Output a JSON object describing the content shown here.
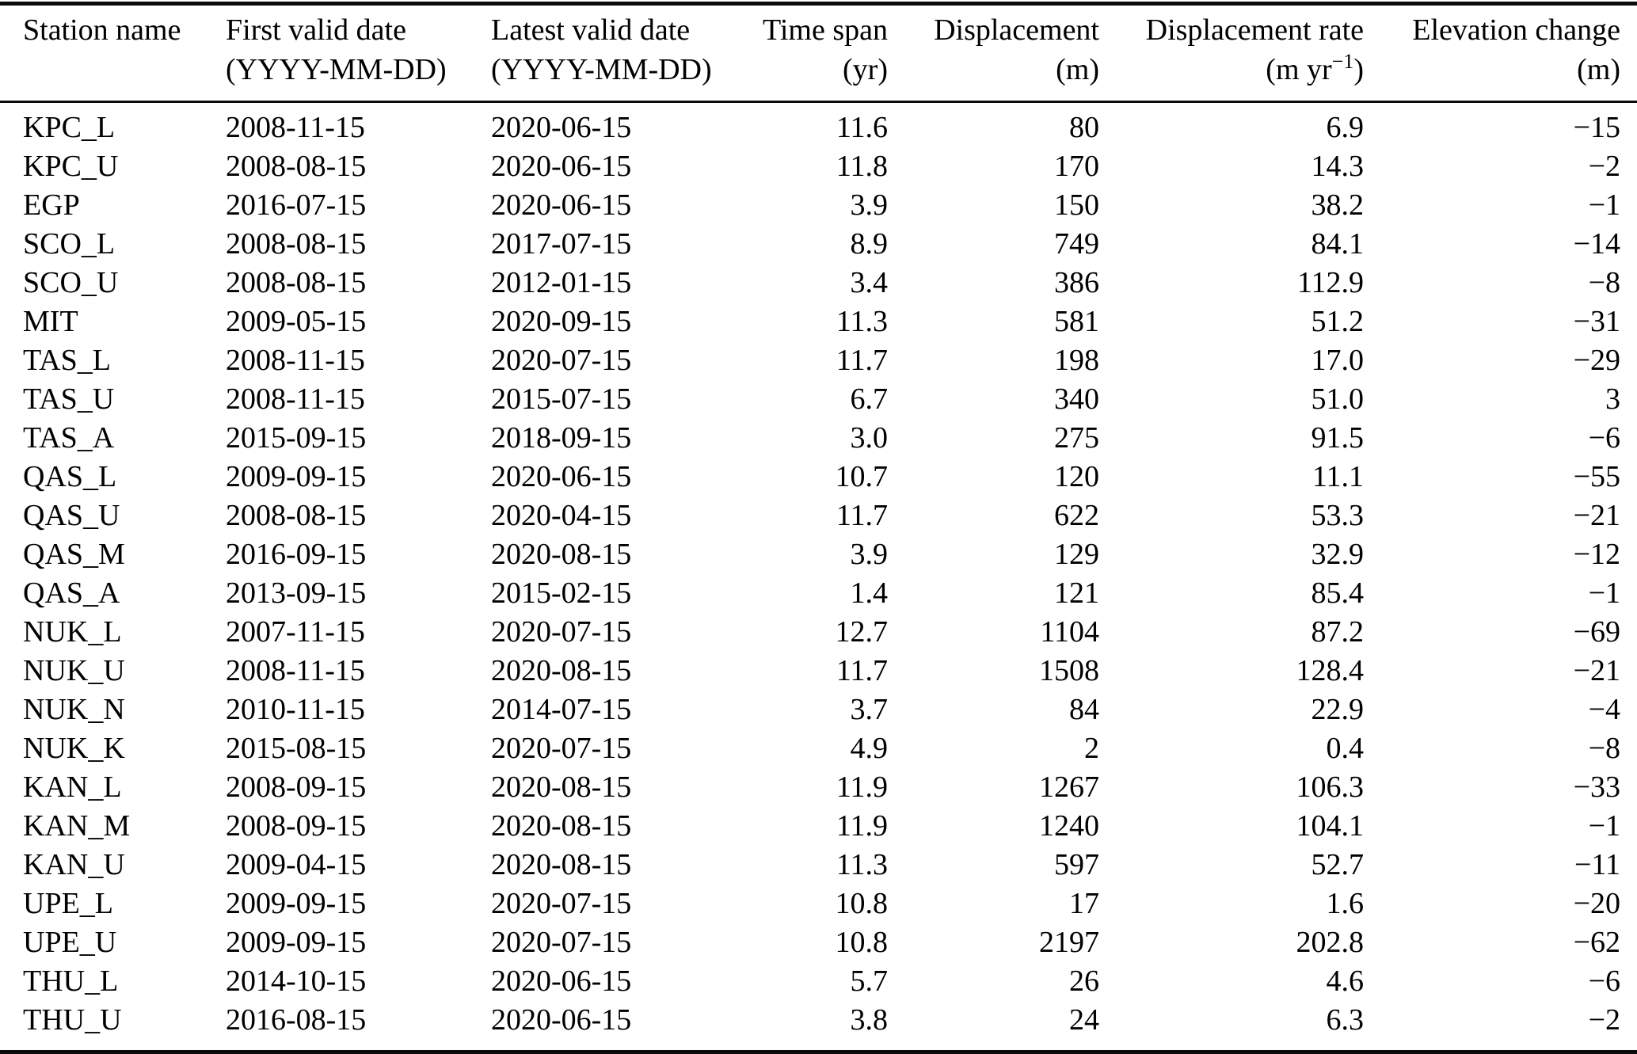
{
  "table": {
    "columns": [
      {
        "key": "station_name",
        "label": "Station name",
        "unit": ""
      },
      {
        "key": "first_valid_date",
        "label": "First valid date",
        "unit": "(YYYY-MM-DD)"
      },
      {
        "key": "latest_valid_date",
        "label": "Latest valid date",
        "unit": "(YYYY-MM-DD)"
      },
      {
        "key": "time_span",
        "label": "Time span",
        "unit": "(yr)"
      },
      {
        "key": "displacement",
        "label": "Displacement",
        "unit": "(m)"
      },
      {
        "key": "displacement_rate",
        "label": "Displacement rate",
        "unit_prefix": "(m yr",
        "unit_sup": "−1",
        "unit_suffix": ")"
      },
      {
        "key": "elevation_change",
        "label": "Elevation change",
        "unit": "(m)"
      }
    ],
    "rows": [
      [
        "KPC_L",
        "2008-11-15",
        "2020-06-15",
        "11.6",
        "80",
        "6.9",
        "−15"
      ],
      [
        "KPC_U",
        "2008-08-15",
        "2020-06-15",
        "11.8",
        "170",
        "14.3",
        "−2"
      ],
      [
        "EGP",
        "2016-07-15",
        "2020-06-15",
        "3.9",
        "150",
        "38.2",
        "−1"
      ],
      [
        "SCO_L",
        "2008-08-15",
        "2017-07-15",
        "8.9",
        "749",
        "84.1",
        "−14"
      ],
      [
        "SCO_U",
        "2008-08-15",
        "2012-01-15",
        "3.4",
        "386",
        "112.9",
        "−8"
      ],
      [
        "MIT",
        "2009-05-15",
        "2020-09-15",
        "11.3",
        "581",
        "51.2",
        "−31"
      ],
      [
        "TAS_L",
        "2008-11-15",
        "2020-07-15",
        "11.7",
        "198",
        "17.0",
        "−29"
      ],
      [
        "TAS_U",
        "2008-11-15",
        "2015-07-15",
        "6.7",
        "340",
        "51.0",
        "3"
      ],
      [
        "TAS_A",
        "2015-09-15",
        "2018-09-15",
        "3.0",
        "275",
        "91.5",
        "−6"
      ],
      [
        "QAS_L",
        "2009-09-15",
        "2020-06-15",
        "10.7",
        "120",
        "11.1",
        "−55"
      ],
      [
        "QAS_U",
        "2008-08-15",
        "2020-04-15",
        "11.7",
        "622",
        "53.3",
        "−21"
      ],
      [
        "QAS_M",
        "2016-09-15",
        "2020-08-15",
        "3.9",
        "129",
        "32.9",
        "−12"
      ],
      [
        "QAS_A",
        "2013-09-15",
        "2015-02-15",
        "1.4",
        "121",
        "85.4",
        "−1"
      ],
      [
        "NUK_L",
        "2007-11-15",
        "2020-07-15",
        "12.7",
        "1104",
        "87.2",
        "−69"
      ],
      [
        "NUK_U",
        "2008-11-15",
        "2020-08-15",
        "11.7",
        "1508",
        "128.4",
        "−21"
      ],
      [
        "NUK_N",
        "2010-11-15",
        "2014-07-15",
        "3.7",
        "84",
        "22.9",
        "−4"
      ],
      [
        "NUK_K",
        "2015-08-15",
        "2020-07-15",
        "4.9",
        "2",
        "0.4",
        "−8"
      ],
      [
        "KAN_L",
        "2008-09-15",
        "2020-08-15",
        "11.9",
        "1267",
        "106.3",
        "−33"
      ],
      [
        "KAN_M",
        "2008-09-15",
        "2020-08-15",
        "11.9",
        "1240",
        "104.1",
        "−1"
      ],
      [
        "KAN_U",
        "2009-04-15",
        "2020-08-15",
        "11.3",
        "597",
        "52.7",
        "−11"
      ],
      [
        "UPE_L",
        "2009-09-15",
        "2020-07-15",
        "10.8",
        "17",
        "1.6",
        "−20"
      ],
      [
        "UPE_U",
        "2009-09-15",
        "2020-07-15",
        "10.8",
        "2197",
        "202.8",
        "−62"
      ],
      [
        "THU_L",
        "2014-10-15",
        "2020-06-15",
        "5.7",
        "26",
        "4.6",
        "−6"
      ],
      [
        "THU_U",
        "2016-08-15",
        "2020-06-15",
        "3.8",
        "24",
        "6.3",
        "−2"
      ]
    ]
  }
}
